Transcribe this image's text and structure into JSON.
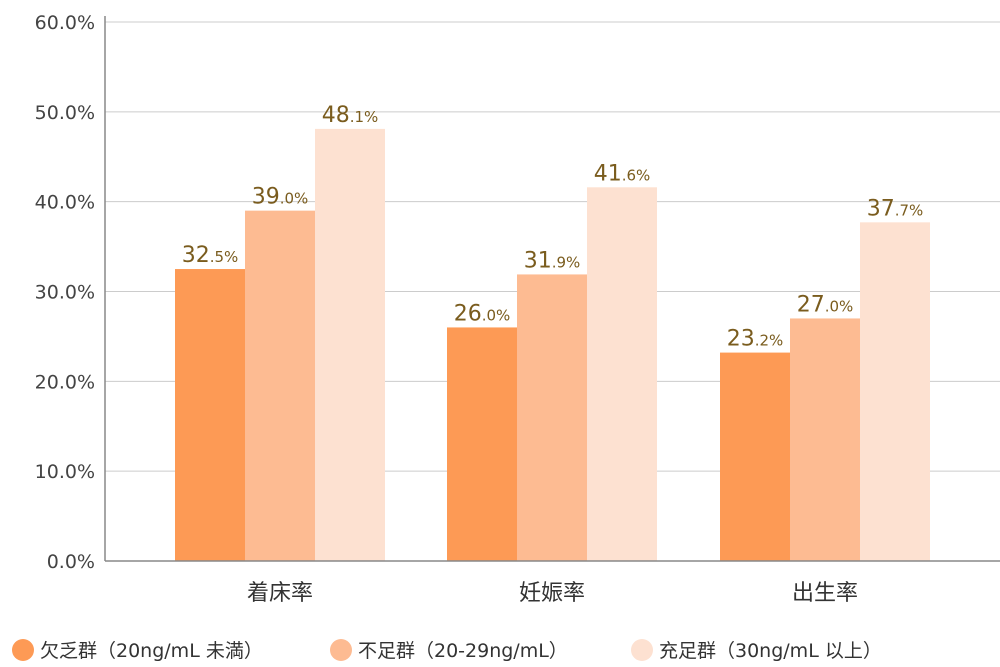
{
  "chart_data": {
    "type": "bar",
    "categories": [
      "着床率",
      "妊娠率",
      "出生率"
    ],
    "series": [
      {
        "name": "欠乏群（20ng/mL 未満）",
        "values": [
          32.5,
          26.0,
          23.2
        ],
        "color": "#fd9a55",
        "label_int": [
          "32",
          "26",
          "23"
        ],
        "label_dec": [
          ".5%",
          ".0%",
          ".2%"
        ]
      },
      {
        "name": "不足群（20-29ng/mL）",
        "values": [
          39.0,
          31.9,
          27.0
        ],
        "color": "#fdbb92",
        "label_int": [
          "39",
          "31",
          "27"
        ],
        "label_dec": [
          ".0%",
          ".9%",
          ".0%"
        ]
      },
      {
        "name": "充足群（30ng/mL 以上）",
        "values": [
          48.1,
          41.6,
          37.7
        ],
        "color": "#fde1d1",
        "label_int": [
          "48",
          "41",
          "37"
        ],
        "label_dec": [
          ".1%",
          ".6%",
          ".7%"
        ]
      }
    ],
    "yticks": [
      "0.0%",
      "10.0%",
      "20.0%",
      "30.0%",
      "40.0%",
      "50.0%",
      "60.0%"
    ],
    "ylim": [
      0,
      60
    ],
    "grid": true,
    "legend_position": "bottom"
  }
}
